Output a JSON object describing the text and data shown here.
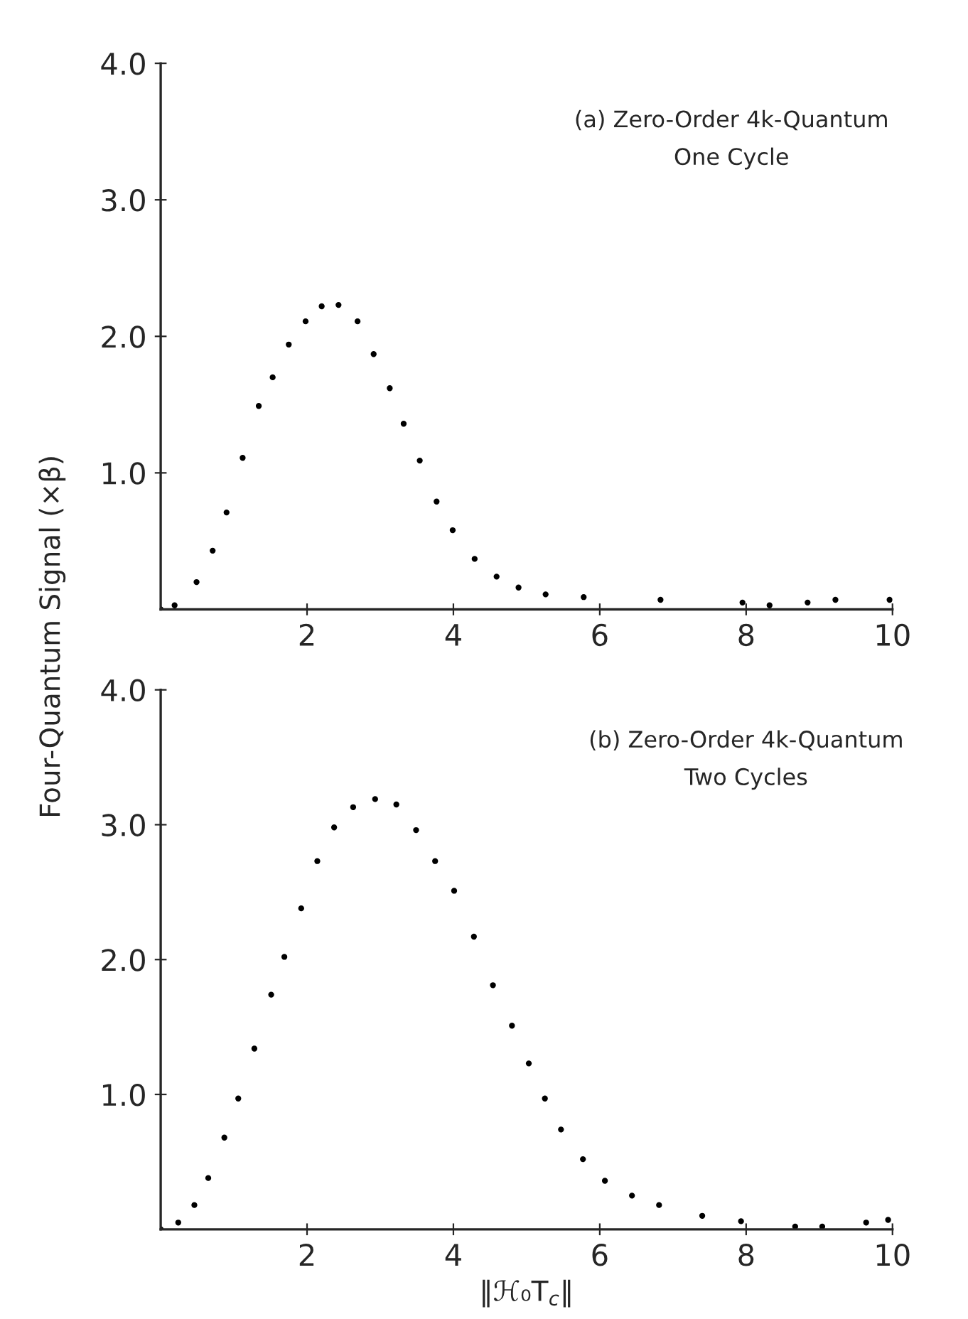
{
  "chart_data": [
    {
      "type": "scatter",
      "ylabel": "Four-Quantum Signal (×β)",
      "annotations": [
        "(a) Zero-Order 4k-Quantum\nOne Cycle"
      ],
      "marker": "circle",
      "grid": false,
      "xlim": [
        0,
        10
      ],
      "xticks": [
        2,
        4,
        6,
        8,
        10
      ],
      "ylim": [
        0,
        4.0
      ],
      "yticks": [
        {
          "value": 1,
          "label": "1.0"
        },
        {
          "value": 2,
          "label": "2.0"
        },
        {
          "value": 3,
          "label": "3.0"
        },
        {
          "value": 4,
          "label": "4.0"
        }
      ],
      "series": [
        {
          "color": "#000000",
          "x": [
            0,
            0.19,
            0.49,
            0.71,
            0.9,
            1.12,
            1.34,
            1.53,
            1.75,
            1.98,
            2.2,
            2.43,
            2.69,
            2.91,
            3.13,
            3.32,
            3.54,
            3.77,
            3.99,
            4.29,
            4.59,
            4.89,
            5.26,
            5.78,
            6.83,
            7.95,
            8.32,
            8.84,
            9.22,
            9.96
          ],
          "values": [
            0,
            0.03,
            0.2,
            0.43,
            0.71,
            1.11,
            1.49,
            1.7,
            1.94,
            2.11,
            2.22,
            2.23,
            2.11,
            1.87,
            1.62,
            1.36,
            1.09,
            0.79,
            0.58,
            0.37,
            0.24,
            0.16,
            0.11,
            0.09,
            0.07,
            0.05,
            0.03,
            0.05,
            0.07,
            0.07
          ]
        }
      ]
    },
    {
      "type": "scatter",
      "xlabel": "‖ℋ₀T$_{c}$‖",
      "annotations": [
        "(b) Zero-Order 4k-Quantum\nTwo Cycles"
      ],
      "marker": "circle",
      "grid": false,
      "xlim": [
        0,
        10
      ],
      "xticks": [
        2,
        4,
        6,
        8,
        10
      ],
      "ylim": [
        0,
        4.0
      ],
      "yticks": [
        {
          "value": 1,
          "label": "1.0"
        },
        {
          "value": 2,
          "label": "2.0"
        },
        {
          "value": 3,
          "label": "3.0"
        },
        {
          "value": 4,
          "label": "4.0"
        }
      ],
      "series": [
        {
          "color": "#000000",
          "x": [
            0,
            0.24,
            0.46,
            0.65,
            0.87,
            1.06,
            1.28,
            1.51,
            1.69,
            1.92,
            2.14,
            2.37,
            2.63,
            2.93,
            3.22,
            3.49,
            3.75,
            4.01,
            4.28,
            4.54,
            4.8,
            5.03,
            5.25,
            5.47,
            5.77,
            6.07,
            6.44,
            6.81,
            7.4,
            7.93,
            8.67,
            9.04,
            9.64,
            9.94
          ],
          "values": [
            0,
            0.05,
            0.18,
            0.38,
            0.68,
            0.97,
            1.34,
            1.74,
            2.02,
            2.38,
            2.73,
            2.98,
            3.13,
            3.19,
            3.15,
            2.96,
            2.73,
            2.51,
            2.17,
            1.81,
            1.51,
            1.23,
            0.97,
            0.74,
            0.52,
            0.36,
            0.25,
            0.18,
            0.1,
            0.06,
            0.02,
            0.02,
            0.05,
            0.07
          ]
        }
      ]
    }
  ]
}
